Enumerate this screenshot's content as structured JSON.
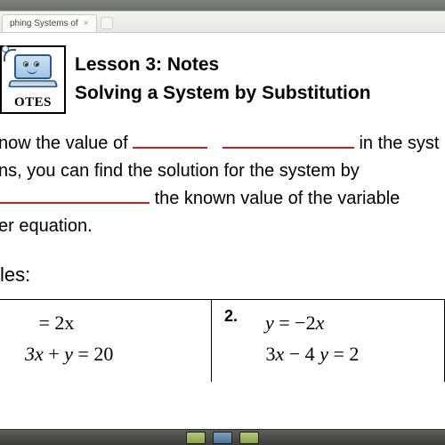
{
  "tab": {
    "label": "phing Systems of "
  },
  "notes_label": "OTES",
  "title": {
    "line1": "Lesson 3: Notes",
    "line2": "Solving a System by Substitution"
  },
  "body": {
    "seg1": "now the value of ",
    "seg2": " in the syst",
    "seg3": "ns, you can find the solution for the system by ",
    "seg4": " the known value of the variable ",
    "seg5": "er equation."
  },
  "examples_label": "les:",
  "ex1": {
    "num": "",
    "eq1_lhs": "",
    "eq1_rhs": "= 2x",
    "eq2": "3x + y = 20"
  },
  "ex2": {
    "num": "2.",
    "eq1": "y = −2x",
    "eq2": "3x − 4 y = 2"
  },
  "colors": {
    "blank_underline": "#c62020",
    "text": "#000000",
    "page_bg": "#ffffff",
    "desktop_bg": "#888a87"
  }
}
